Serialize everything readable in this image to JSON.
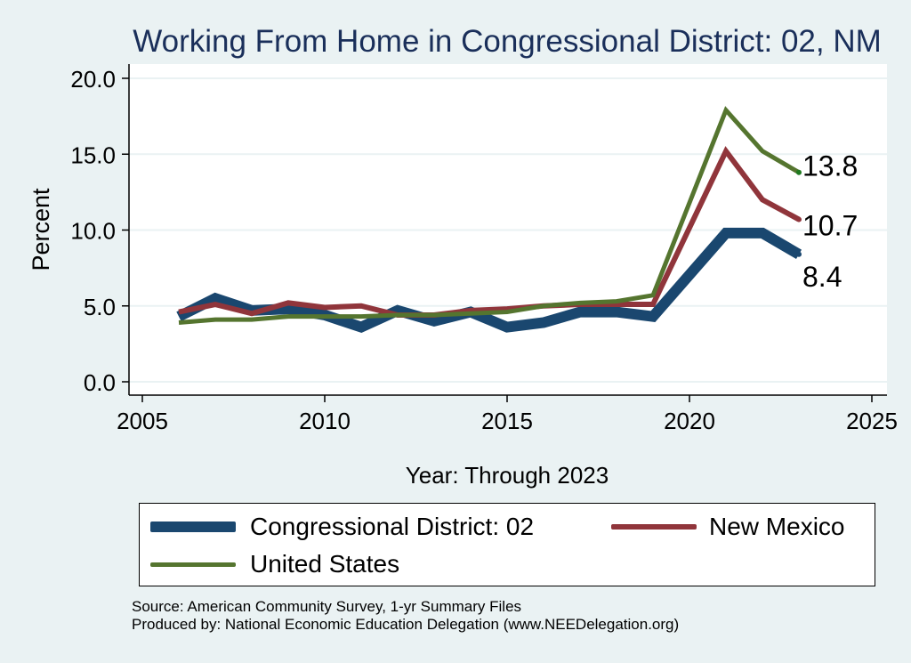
{
  "chart_data": {
    "type": "line",
    "title": "Working From Home in Congressional District: 02, NM",
    "xlabel": "Year: Through 2023",
    "ylabel": "Percent",
    "xlim": [
      2005,
      2025
    ],
    "ylim": [
      0,
      20
    ],
    "x_ticks": [
      "2005",
      "2010",
      "2015",
      "2020",
      "2025"
    ],
    "y_ticks": [
      "0.0",
      "5.0",
      "10.0",
      "15.0",
      "20.0"
    ],
    "grid": "horizontal",
    "legend_position": "bottom",
    "x": [
      2006,
      2007,
      2008,
      2009,
      2010,
      2011,
      2012,
      2013,
      2014,
      2015,
      2016,
      2017,
      2018,
      2019,
      2021,
      2022,
      2023
    ],
    "series": [
      {
        "name": "Congressional District: 02",
        "color": "#1a476f",
        "values": [
          4.3,
          5.5,
          4.7,
          4.8,
          4.4,
          3.6,
          4.7,
          4.0,
          4.6,
          3.6,
          3.9,
          4.6,
          4.6,
          4.3,
          9.8,
          9.8,
          8.4
        ],
        "end_label": "8.4"
      },
      {
        "name": "New Mexico",
        "color": "#90353b",
        "values": [
          4.6,
          5.1,
          4.5,
          5.2,
          4.9,
          5.0,
          4.4,
          4.4,
          4.7,
          4.8,
          5.0,
          5.1,
          5.1,
          5.1,
          15.2,
          12.0,
          10.7
        ],
        "end_label": "10.7"
      },
      {
        "name": "United States",
        "color": "#55752f",
        "values": [
          3.9,
          4.1,
          4.1,
          4.3,
          4.3,
          4.3,
          4.4,
          4.4,
          4.5,
          4.6,
          5.0,
          5.2,
          5.3,
          5.7,
          17.9,
          15.2,
          13.8
        ],
        "end_label": "13.8"
      }
    ]
  },
  "legend": {
    "items": [
      {
        "label": "Congressional District: 02",
        "color": "#1a476f"
      },
      {
        "label": "New Mexico",
        "color": "#90353b"
      },
      {
        "label": "United States",
        "color": "#55752f"
      }
    ]
  },
  "source": "Source: American Community Survey, 1-yr Summary Files",
  "producer": "Produced by: National Economic Education Delegation (www.NEEDelegation.org)"
}
